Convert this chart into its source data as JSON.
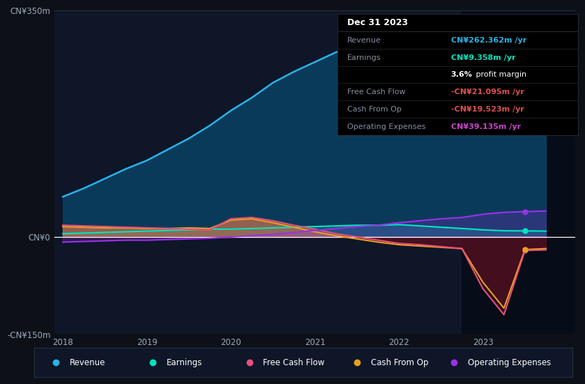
{
  "bg_color": "#0d1117",
  "plot_bg_color": "#0e1628",
  "highlight_bg": "#060c18",
  "years": [
    2018.0,
    2018.25,
    2018.5,
    2018.75,
    2019.0,
    2019.25,
    2019.5,
    2019.75,
    2020.0,
    2020.25,
    2020.5,
    2020.75,
    2021.0,
    2021.25,
    2021.5,
    2021.75,
    2022.0,
    2022.25,
    2022.5,
    2022.75,
    2023.0,
    2023.25,
    2023.5,
    2023.75
  ],
  "revenue": [
    62,
    75,
    90,
    105,
    118,
    135,
    152,
    172,
    195,
    215,
    238,
    255,
    270,
    285,
    295,
    308,
    328,
    325,
    310,
    290,
    272,
    258,
    262,
    265
  ],
  "earnings": [
    5,
    6,
    7,
    8,
    9,
    10,
    11,
    12,
    12,
    13,
    14,
    15,
    16,
    17,
    18,
    18,
    19,
    17,
    15,
    13,
    11,
    9.5,
    9.358,
    9
  ],
  "free_cash_flow": [
    18,
    17,
    16,
    15,
    14,
    13,
    12,
    11,
    28,
    30,
    25,
    18,
    12,
    5,
    0,
    -5,
    -10,
    -12,
    -15,
    -18,
    -80,
    -120,
    -21,
    -20
  ],
  "cash_from_op": [
    16,
    15,
    14,
    14,
    13,
    13,
    14,
    13,
    26,
    28,
    22,
    15,
    8,
    2,
    -3,
    -8,
    -12,
    -14,
    -16,
    -18,
    -70,
    -110,
    -19.523,
    -18
  ],
  "op_expenses": [
    -8,
    -7,
    -6,
    -5,
    -5,
    -4,
    -3,
    -2,
    0,
    2,
    4,
    7,
    10,
    13,
    16,
    18,
    22,
    25,
    28,
    30,
    35,
    38,
    39.135,
    40
  ],
  "revenue_color": "#29b5e8",
  "earnings_color": "#00e5c0",
  "fcf_color": "#e8507a",
  "cashop_color": "#e8a020",
  "opex_color": "#9b30e8",
  "revenue_fill": "#0a3a5a",
  "neg_fill": "#5a1020",
  "ylim_min": -150,
  "ylim_max": 350,
  "xlim_min": 2017.9,
  "xlim_max": 2024.1,
  "xticks": [
    2018,
    2019,
    2020,
    2021,
    2022,
    2023
  ],
  "ytick_vals": [
    350,
    0,
    -150
  ],
  "ytick_labels": [
    "CN¥350m",
    "CN¥0",
    "-CN¥150m"
  ],
  "highlight_start": 2022.75,
  "table_title": "Dec 31 2023",
  "table_rows": [
    {
      "label": "Revenue",
      "value": "CN¥262.362m /yr",
      "value_color": "#29b5e8",
      "label_color": "#888fa0"
    },
    {
      "label": "Earnings",
      "value": "CN¥9.358m /yr",
      "value_color": "#00e5c0",
      "label_color": "#888fa0"
    },
    {
      "label": "",
      "value": "3.6% profit margin",
      "value_color": "#ffffff",
      "label_color": "#888fa0",
      "bold_part": "3.6%"
    },
    {
      "label": "Free Cash Flow",
      "value": "-CN¥21.095m /yr",
      "value_color": "#e05050",
      "label_color": "#888fa0"
    },
    {
      "label": "Cash From Op",
      "value": "-CN¥19.523m /yr",
      "value_color": "#e05050",
      "label_color": "#888fa0"
    },
    {
      "label": "Operating Expenses",
      "value": "CN¥39.135m /yr",
      "value_color": "#cc44cc",
      "label_color": "#888fa0"
    }
  ],
  "legend_items": [
    {
      "label": "Revenue",
      "color": "#29b5e8"
    },
    {
      "label": "Earnings",
      "color": "#00e5c0"
    },
    {
      "label": "Free Cash Flow",
      "color": "#e8507a"
    },
    {
      "label": "Cash From Op",
      "color": "#e8a020"
    },
    {
      "label": "Operating Expenses",
      "color": "#9b30e8"
    }
  ]
}
